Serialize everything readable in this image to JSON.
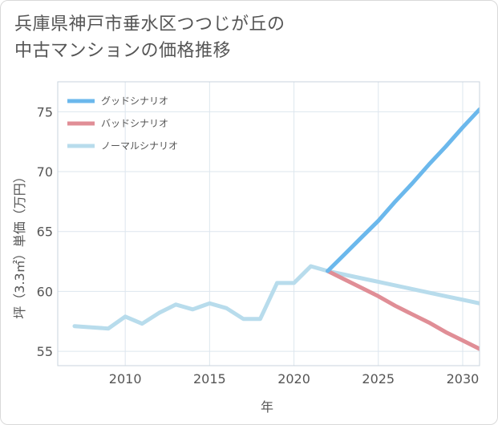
{
  "title_lines": [
    "兵庫県神戸市垂水区つつじが丘の",
    "中古マンションの価格推移"
  ],
  "chart_data": {
    "type": "line",
    "xlabel": "年",
    "ylabel": "坪（3.3㎡）単価（万円）",
    "xlim": [
      2006,
      2031
    ],
    "ylim": [
      53.8,
      77.5
    ],
    "x_ticks": [
      2010,
      2015,
      2020,
      2025,
      2030
    ],
    "y_ticks": [
      55,
      60,
      65,
      70,
      75
    ],
    "grid": true,
    "legend_position": "top-left",
    "series": [
      {
        "name": "グッドシナリオ",
        "color": "#6bb8ec",
        "x": [
          2022,
          2023,
          2024,
          2025,
          2026,
          2027,
          2028,
          2029,
          2030,
          2031
        ],
        "y": [
          61.7,
          63.1,
          64.5,
          65.9,
          67.5,
          69.0,
          70.6,
          72.1,
          73.7,
          75.2
        ]
      },
      {
        "name": "バッドシナリオ",
        "color": "#e08e96",
        "x": [
          2022,
          2023,
          2024,
          2025,
          2026,
          2027,
          2028,
          2029,
          2030,
          2031
        ],
        "y": [
          61.7,
          61.0,
          60.3,
          59.6,
          58.8,
          58.1,
          57.4,
          56.6,
          55.9,
          55.2
        ]
      },
      {
        "name": "ノーマルシナリオ",
        "color": "#b8dcec",
        "x": [
          2007,
          2008,
          2009,
          2010,
          2011,
          2012,
          2013,
          2014,
          2015,
          2016,
          2017,
          2018,
          2019,
          2020,
          2021,
          2022,
          2023,
          2024,
          2025,
          2026,
          2027,
          2028,
          2029,
          2030,
          2031
        ],
        "y": [
          57.1,
          57.0,
          56.9,
          57.9,
          57.3,
          58.2,
          58.9,
          58.5,
          59.0,
          58.6,
          57.7,
          57.7,
          60.7,
          60.7,
          62.1,
          61.7,
          61.4,
          61.1,
          60.8,
          60.5,
          60.2,
          59.9,
          59.6,
          59.3,
          59.0
        ]
      }
    ]
  }
}
